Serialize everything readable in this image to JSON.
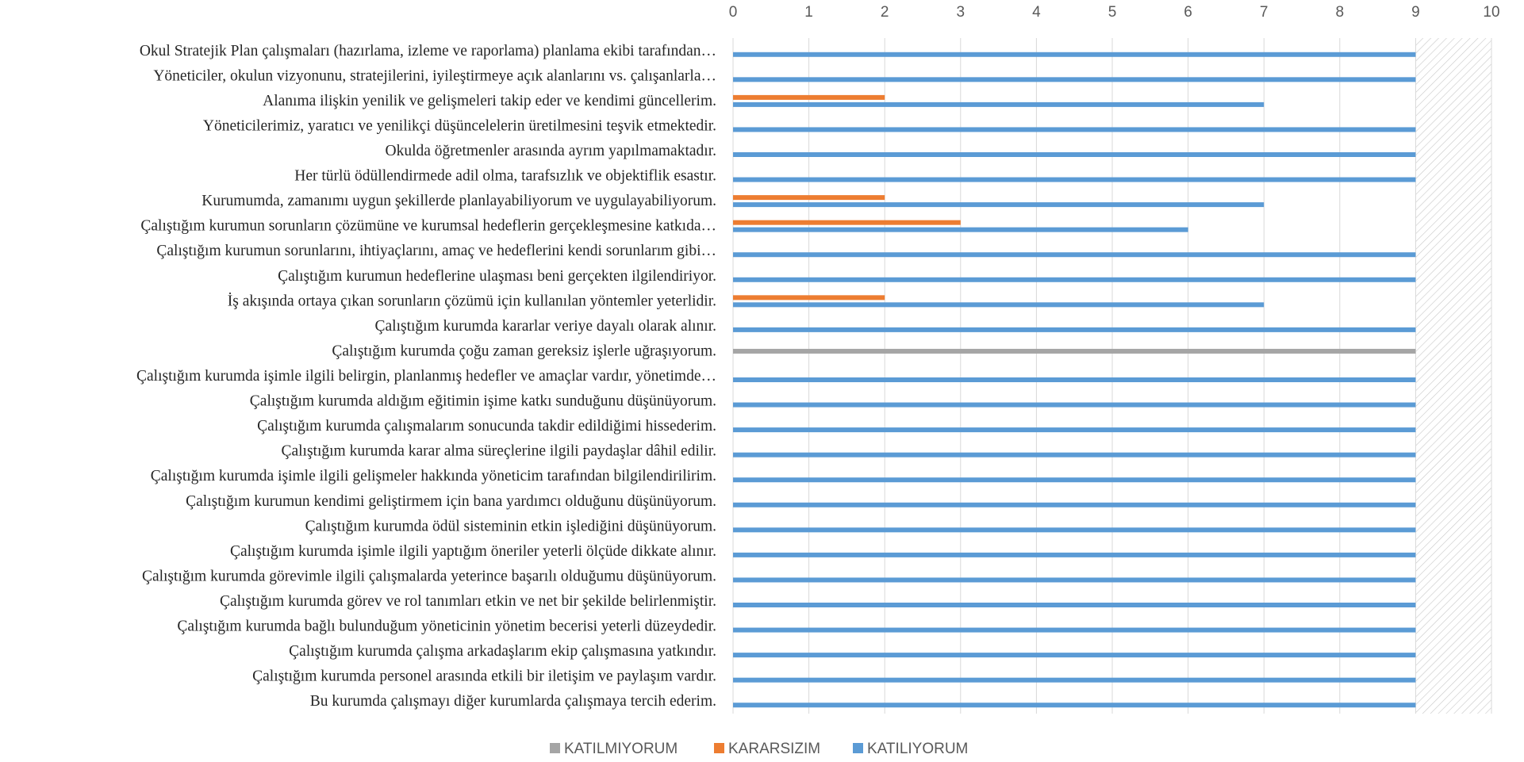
{
  "chart_data": {
    "type": "bar",
    "orientation": "horizontal",
    "xlim": [
      0,
      10
    ],
    "x_ticks": [
      0,
      1,
      2,
      3,
      4,
      5,
      6,
      7,
      8,
      9,
      10
    ],
    "grid": "vertical",
    "hatched_region": [
      9,
      10
    ],
    "legend_position": "bottom",
    "categories": [
      "Okul Stratejik Plan çalışmaları (hazırlama, izleme ve raporlama) planlama ekibi tarafından…",
      "Yöneticiler, okulun vizyonunu, stratejilerini, iyileştirmeye açık alanlarını vs. çalışanlarla…",
      "Alanıma ilişkin yenilik ve gelişmeleri takip eder ve kendimi güncellerim.",
      "Yöneticilerimiz, yaratıcı ve yenilikçi düşüncelelerin üretilmesini teşvik etmektedir.",
      "Okulda öğretmenler arasında ayrım yapılmamaktadır.",
      "Her türlü ödüllendirmede adil olma, tarafsızlık ve objektiflik esastır.",
      "Kurumumda, zamanımı uygun şekillerde planlayabiliyorum ve uygulayabiliyorum.",
      "Çalıştığım kurumun sorunların çözümüne ve kurumsal hedeflerin gerçekleşmesine katkıda…",
      "Çalıştığım kurumun sorunlarını, ihtiyaçlarını, amaç ve hedeflerini kendi sorunlarım gibi…",
      "Çalıştığım kurumun hedeflerine ulaşması beni gerçekten ilgilendiriyor.",
      "İş akışında ortaya çıkan sorunların çözümü için kullanılan yöntemler yeterlidir.",
      "Çalıştığım kurumda kararlar veriye dayalı olarak alınır.",
      "Çalıştığım kurumda çoğu zaman gereksiz işlerle uğraşıyorum.",
      "Çalıştığım kurumda işimle ilgili belirgin, planlanmış hedefler ve amaçlar vardır, yönetimde…",
      "Çalıştığım kurumda aldığım eğitimin işime katkı sunduğunu düşünüyorum.",
      "Çalıştığım kurumda çalışmalarım sonucunda takdir edildiğimi hissederim.",
      "Çalıştığım kurumda karar alma süreçlerine ilgili paydaşlar dâhil edilir.",
      "Çalıştığım kurumda işimle ilgili gelişmeler hakkında yöneticim tarafından bilgilendirilirim.",
      "Çalıştığım kurumun kendimi geliştirmem için bana yardımcı olduğunu düşünüyorum.",
      "Çalıştığım kurumda ödül sisteminin etkin işlediğini düşünüyorum.",
      "Çalıştığım kurumda işimle ilgili yaptığım öneriler yeterli ölçüde dikkate alınır.",
      "Çalıştığım kurumda görevimle ilgili çalışmalarda yeterince başarılı olduğumu düşünüyorum.",
      "Çalıştığım kurumda görev ve rol tanımları etkin ve net bir şekilde belirlenmiştir.",
      "Çalıştığım kurumda bağlı bulunduğum yöneticinin yönetim becerisi yeterli düzeydedir.",
      "Çalıştığım kurumda çalışma arkadaşlarım ekip çalışmasına yatkındır.",
      "Çalıştığım kurumda personel arasında etkili bir iletişim ve paylaşım vardır.",
      "Bu kurumda çalışmayı diğer kurumlarda çalışmaya tercih ederim."
    ],
    "series": [
      {
        "name": "KATILMIYORUM",
        "color": "#a5a5a5",
        "values": [
          0,
          0,
          0,
          0,
          0,
          0,
          0,
          0,
          0,
          0,
          0,
          0,
          9,
          0,
          0,
          0,
          0,
          0,
          0,
          0,
          0,
          0,
          0,
          0,
          0,
          0,
          0
        ]
      },
      {
        "name": "KARARSIZIM",
        "color": "#ed7d31",
        "values": [
          0,
          0,
          2,
          0,
          0,
          0,
          2,
          3,
          0,
          0,
          2,
          0,
          0,
          0,
          0,
          0,
          0,
          0,
          0,
          0,
          0,
          0,
          0,
          0,
          0,
          0,
          0
        ]
      },
      {
        "name": "KATILIYORUM",
        "color": "#5b9bd5",
        "values": [
          9,
          9,
          7,
          9,
          9,
          9,
          7,
          6,
          9,
          9,
          7,
          9,
          0,
          9,
          9,
          9,
          9,
          9,
          9,
          9,
          9,
          9,
          9,
          9,
          9,
          9,
          9
        ]
      }
    ]
  }
}
